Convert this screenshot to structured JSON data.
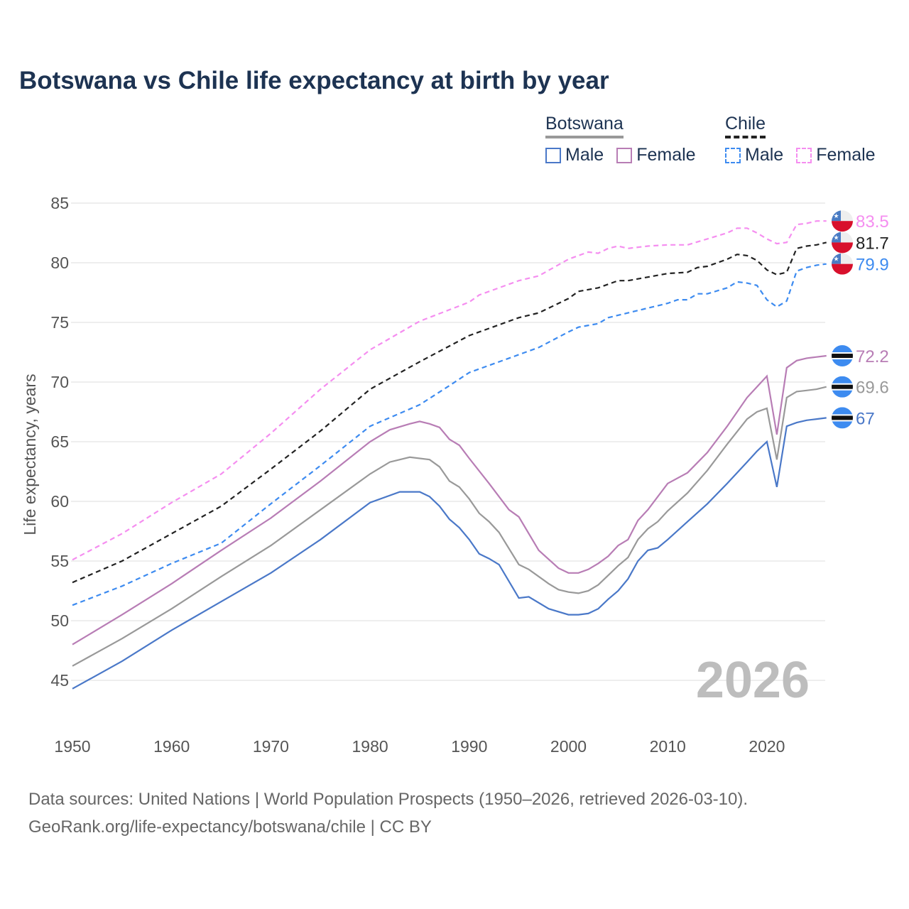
{
  "chart_data": {
    "type": "line",
    "title": "Botswana vs Chile life expectancy at birth by year",
    "xlabel": "",
    "ylabel": "Life expectancy, years",
    "xlim": [
      1950,
      2026
    ],
    "ylim": [
      43,
      87
    ],
    "x_ticks": [
      1950,
      1960,
      1970,
      1980,
      1990,
      2000,
      2010,
      2020
    ],
    "y_ticks": [
      45,
      50,
      55,
      60,
      65,
      70,
      75,
      80,
      85
    ],
    "grid": true,
    "year_watermark": "2026",
    "legend": {
      "groups": [
        {
          "label": "Botswana",
          "color": "#999999",
          "style": "solid",
          "items": [
            {
              "label": "Male",
              "color": "#4a78c8"
            },
            {
              "label": "Female",
              "color": "#b87db5"
            }
          ]
        },
        {
          "label": "Chile",
          "color": "#222222",
          "style": "dashed",
          "items": [
            {
              "label": "Male",
              "color": "#3d8bf0"
            },
            {
              "label": "Female",
              "color": "#f58ef0"
            }
          ]
        }
      ]
    },
    "series": [
      {
        "name": "Chile Female",
        "country": "chile",
        "color": "#f58ef0",
        "dashed": true,
        "end_label": "83.5",
        "points": [
          [
            1950,
            55.1
          ],
          [
            1955,
            57.3
          ],
          [
            1960,
            59.9
          ],
          [
            1965,
            62.3
          ],
          [
            1970,
            65.7
          ],
          [
            1975,
            69.4
          ],
          [
            1980,
            72.7
          ],
          [
            1985,
            75.1
          ],
          [
            1990,
            76.7
          ],
          [
            1991,
            77.3
          ],
          [
            1995,
            78.5
          ],
          [
            1997,
            78.9
          ],
          [
            2000,
            80.3
          ],
          [
            2002,
            80.9
          ],
          [
            2003,
            80.8
          ],
          [
            2004,
            81.2
          ],
          [
            2005,
            81.4
          ],
          [
            2006,
            81.2
          ],
          [
            2008,
            81.4
          ],
          [
            2010,
            81.5
          ],
          [
            2012,
            81.5
          ],
          [
            2014,
            82.0
          ],
          [
            2016,
            82.5
          ],
          [
            2017,
            82.9
          ],
          [
            2018,
            82.9
          ],
          [
            2019,
            82.5
          ],
          [
            2020,
            82.0
          ],
          [
            2021,
            81.6
          ],
          [
            2022,
            81.7
          ],
          [
            2023,
            83.2
          ],
          [
            2024,
            83.3
          ],
          [
            2025,
            83.5
          ],
          [
            2026,
            83.5
          ]
        ]
      },
      {
        "name": "Chile",
        "country": "chile",
        "color": "#222222",
        "dashed": true,
        "end_label": "81.7",
        "points": [
          [
            1950,
            53.2
          ],
          [
            1955,
            55.0
          ],
          [
            1960,
            57.3
          ],
          [
            1965,
            59.6
          ],
          [
            1970,
            62.7
          ],
          [
            1975,
            65.9
          ],
          [
            1980,
            69.4
          ],
          [
            1985,
            71.7
          ],
          [
            1990,
            73.9
          ],
          [
            1995,
            75.4
          ],
          [
            1997,
            75.8
          ],
          [
            2000,
            77.0
          ],
          [
            2001,
            77.6
          ],
          [
            2003,
            77.9
          ],
          [
            2005,
            78.5
          ],
          [
            2006,
            78.5
          ],
          [
            2008,
            78.8
          ],
          [
            2010,
            79.1
          ],
          [
            2012,
            79.2
          ],
          [
            2013,
            79.6
          ],
          [
            2014,
            79.7
          ],
          [
            2016,
            80.3
          ],
          [
            2017,
            80.7
          ],
          [
            2018,
            80.6
          ],
          [
            2019,
            80.2
          ],
          [
            2020,
            79.4
          ],
          [
            2021,
            79.0
          ],
          [
            2022,
            79.2
          ],
          [
            2023,
            81.2
          ],
          [
            2024,
            81.4
          ],
          [
            2025,
            81.5
          ],
          [
            2026,
            81.7
          ]
        ]
      },
      {
        "name": "Chile Male",
        "country": "chile",
        "color": "#3d8bf0",
        "dashed": true,
        "end_label": "79.9",
        "points": [
          [
            1950,
            51.3
          ],
          [
            1955,
            52.9
          ],
          [
            1960,
            54.8
          ],
          [
            1965,
            56.5
          ],
          [
            1970,
            59.8
          ],
          [
            1975,
            63.0
          ],
          [
            1980,
            66.3
          ],
          [
            1985,
            68.1
          ],
          [
            1988,
            69.7
          ],
          [
            1990,
            70.8
          ],
          [
            1995,
            72.3
          ],
          [
            1997,
            72.9
          ],
          [
            2000,
            74.2
          ],
          [
            2001,
            74.6
          ],
          [
            2003,
            74.9
          ],
          [
            2004,
            75.4
          ],
          [
            2006,
            75.8
          ],
          [
            2008,
            76.2
          ],
          [
            2010,
            76.6
          ],
          [
            2011,
            76.9
          ],
          [
            2012,
            76.9
          ],
          [
            2013,
            77.4
          ],
          [
            2014,
            77.4
          ],
          [
            2016,
            77.9
          ],
          [
            2017,
            78.4
          ],
          [
            2018,
            78.3
          ],
          [
            2019,
            78.1
          ],
          [
            2020,
            76.9
          ],
          [
            2021,
            76.3
          ],
          [
            2022,
            76.8
          ],
          [
            2023,
            79.3
          ],
          [
            2024,
            79.6
          ],
          [
            2025,
            79.8
          ],
          [
            2026,
            79.9
          ]
        ]
      },
      {
        "name": "Botswana Female",
        "country": "botswana",
        "color": "#b87db5",
        "dashed": false,
        "end_label": "72.2",
        "points": [
          [
            1950,
            48.0
          ],
          [
            1955,
            50.5
          ],
          [
            1960,
            53.1
          ],
          [
            1965,
            55.9
          ],
          [
            1970,
            58.6
          ],
          [
            1975,
            61.7
          ],
          [
            1980,
            65.0
          ],
          [
            1982,
            66.0
          ],
          [
            1984,
            66.5
          ],
          [
            1985,
            66.7
          ],
          [
            1986,
            66.5
          ],
          [
            1987,
            66.2
          ],
          [
            1988,
            65.2
          ],
          [
            1989,
            64.7
          ],
          [
            1990,
            63.6
          ],
          [
            1992,
            61.5
          ],
          [
            1994,
            59.3
          ],
          [
            1995,
            58.7
          ],
          [
            1997,
            55.9
          ],
          [
            1999,
            54.4
          ],
          [
            2000,
            54.0
          ],
          [
            2001,
            54.0
          ],
          [
            2002,
            54.3
          ],
          [
            2003,
            54.8
          ],
          [
            2004,
            55.4
          ],
          [
            2005,
            56.3
          ],
          [
            2006,
            56.8
          ],
          [
            2007,
            58.4
          ],
          [
            2008,
            59.3
          ],
          [
            2010,
            61.5
          ],
          [
            2012,
            62.4
          ],
          [
            2014,
            64.1
          ],
          [
            2016,
            66.3
          ],
          [
            2018,
            68.7
          ],
          [
            2019,
            69.6
          ],
          [
            2020,
            70.5
          ],
          [
            2021,
            65.6
          ],
          [
            2022,
            71.2
          ],
          [
            2023,
            71.8
          ],
          [
            2024,
            72.0
          ],
          [
            2025,
            72.1
          ],
          [
            2026,
            72.2
          ]
        ]
      },
      {
        "name": "Botswana",
        "country": "botswana",
        "color": "#999999",
        "dashed": false,
        "end_label": "69.6",
        "points": [
          [
            1950,
            46.2
          ],
          [
            1955,
            48.5
          ],
          [
            1960,
            51.0
          ],
          [
            1965,
            53.7
          ],
          [
            1970,
            56.3
          ],
          [
            1975,
            59.3
          ],
          [
            1980,
            62.3
          ],
          [
            1982,
            63.3
          ],
          [
            1984,
            63.7
          ],
          [
            1986,
            63.5
          ],
          [
            1987,
            62.9
          ],
          [
            1988,
            61.7
          ],
          [
            1989,
            61.2
          ],
          [
            1990,
            60.2
          ],
          [
            1991,
            59.0
          ],
          [
            1992,
            58.3
          ],
          [
            1993,
            57.4
          ],
          [
            1995,
            54.7
          ],
          [
            1996,
            54.3
          ],
          [
            1998,
            53.1
          ],
          [
            1999,
            52.6
          ],
          [
            2000,
            52.4
          ],
          [
            2001,
            52.3
          ],
          [
            2002,
            52.5
          ],
          [
            2003,
            53.0
          ],
          [
            2004,
            53.8
          ],
          [
            2005,
            54.6
          ],
          [
            2006,
            55.3
          ],
          [
            2007,
            56.8
          ],
          [
            2008,
            57.7
          ],
          [
            2009,
            58.3
          ],
          [
            2010,
            59.2
          ],
          [
            2012,
            60.7
          ],
          [
            2014,
            62.6
          ],
          [
            2016,
            64.8
          ],
          [
            2018,
            66.9
          ],
          [
            2019,
            67.5
          ],
          [
            2020,
            67.8
          ],
          [
            2021,
            63.5
          ],
          [
            2022,
            68.7
          ],
          [
            2023,
            69.2
          ],
          [
            2024,
            69.3
          ],
          [
            2025,
            69.4
          ],
          [
            2026,
            69.6
          ]
        ]
      },
      {
        "name": "Botswana Male",
        "country": "botswana",
        "color": "#4a78c8",
        "dashed": false,
        "end_label": "67",
        "points": [
          [
            1950,
            44.3
          ],
          [
            1955,
            46.6
          ],
          [
            1960,
            49.2
          ],
          [
            1965,
            51.6
          ],
          [
            1970,
            54.0
          ],
          [
            1975,
            56.8
          ],
          [
            1980,
            59.9
          ],
          [
            1983,
            60.8
          ],
          [
            1985,
            60.8
          ],
          [
            1986,
            60.4
          ],
          [
            1987,
            59.6
          ],
          [
            1988,
            58.5
          ],
          [
            1989,
            57.8
          ],
          [
            1990,
            56.8
          ],
          [
            1991,
            55.6
          ],
          [
            1992,
            55.2
          ],
          [
            1993,
            54.7
          ],
          [
            1995,
            51.9
          ],
          [
            1996,
            52.0
          ],
          [
            1998,
            51.0
          ],
          [
            2000,
            50.5
          ],
          [
            2001,
            50.5
          ],
          [
            2002,
            50.6
          ],
          [
            2003,
            51.0
          ],
          [
            2004,
            51.8
          ],
          [
            2005,
            52.5
          ],
          [
            2006,
            53.5
          ],
          [
            2007,
            55.0
          ],
          [
            2008,
            55.9
          ],
          [
            2009,
            56.1
          ],
          [
            2010,
            56.8
          ],
          [
            2012,
            58.3
          ],
          [
            2014,
            59.8
          ],
          [
            2016,
            61.5
          ],
          [
            2018,
            63.3
          ],
          [
            2019,
            64.2
          ],
          [
            2020,
            65.0
          ],
          [
            2021,
            61.2
          ],
          [
            2022,
            66.3
          ],
          [
            2023,
            66.6
          ],
          [
            2024,
            66.8
          ],
          [
            2025,
            66.9
          ],
          [
            2026,
            67.0
          ]
        ]
      }
    ]
  },
  "footer": {
    "line1": "Data sources: United Nations | World Population Prospects (1950–2026, retrieved 2026-03-10).",
    "line2": "GeoRank.org/life-expectancy/botswana/chile | CC BY"
  }
}
